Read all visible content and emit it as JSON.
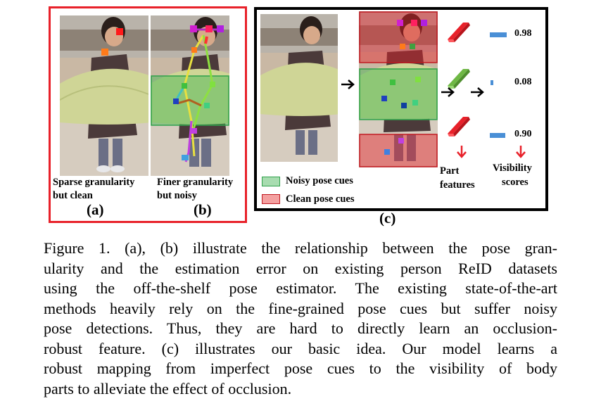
{
  "figure": {
    "panel_a_label": "(a)",
    "panel_b_label": "(b)",
    "panel_c_label": "(c)",
    "panel_a_caption_line1": "Sparse granularity",
    "panel_a_caption_line2": "but clean",
    "panel_b_caption_line1": "Finer granularity",
    "panel_b_caption_line2": "but noisy",
    "legend": {
      "noisy_label": "Noisy  pose cues",
      "clean_label": "Clean pose cues",
      "noisy_color": "#a8dcb0",
      "clean_color": "#f4a0a0"
    },
    "part_features_line1": "Part",
    "part_features_line2": "features",
    "visibility_line1": "Visibility",
    "visibility_line2": "scores",
    "scores": [
      {
        "value_text": "0.98",
        "value": 0.98,
        "feature_color": "#e8212a"
      },
      {
        "value_text": "0.08",
        "value": 0.08,
        "feature_color": "#6fb845"
      },
      {
        "value_text": "0.90",
        "value": 0.9,
        "feature_color": "#e8212a"
      }
    ],
    "colors": {
      "panel_ab_border": "#e8212a",
      "panel_c_border": "#000000",
      "bar": "#4a8fd6",
      "down_arrow": "#e8212a"
    }
  },
  "caption": {
    "lines": [
      "Figure 1. (a), (b) illustrate the relationship between the pose gran-",
      "ularity and the estimation error on existing person ReID datasets",
      "using the off-the-shelf pose estimator. The existing state-of-the-art",
      "methods heavily rely on the fine-grained pose cues but suffer noisy",
      "pose detections. Thus, they are hard to directly learn an occlusion-",
      "robust feature. (c) illustrates our basic idea. Our model learns a",
      "robust mapping from imperfect pose cues to the visibility of body",
      "parts to alleviate the effect of occlusion."
    ]
  }
}
